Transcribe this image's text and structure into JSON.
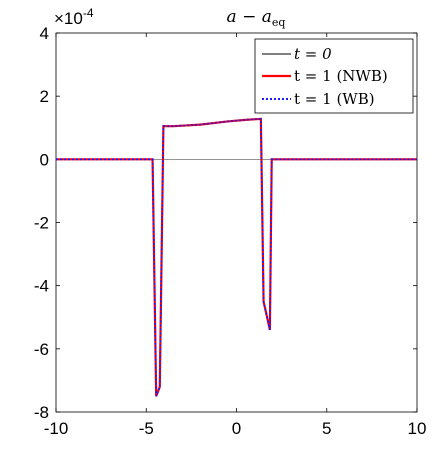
{
  "chart_data": {
    "type": "line",
    "title_main": "a − a",
    "title_sub": "eq",
    "y_multiplier_prefix": "×10",
    "y_multiplier_exp": "-4",
    "xlim": [
      -10,
      10
    ],
    "ylim": [
      -8,
      4
    ],
    "xticks": [
      -10,
      -5,
      0,
      5,
      10
    ],
    "yticks": [
      4,
      2,
      0,
      -2,
      -4,
      -6,
      -8
    ],
    "xtick_labels": [
      "-10",
      "-5",
      "0",
      "5",
      "10"
    ],
    "ytick_labels": [
      "4",
      "2",
      "0",
      "-2",
      "-4",
      "-6",
      "-8"
    ],
    "grid": false,
    "legend_position": "top-right",
    "reference_line_y": 0,
    "series": [
      {
        "name": "t = 0",
        "color": "#000000",
        "dash": "solid",
        "x": [
          -10,
          -4.6,
          -4.6,
          -10
        ],
        "y": [
          0,
          0,
          0,
          0
        ]
      },
      {
        "name": "t = 1 (NWB)",
        "color": "#ff0000",
        "dash": "solid",
        "x": [
          -10,
          -4.65,
          -4.45,
          -4.25,
          -4.05,
          -3.5,
          -2.0,
          -0.5,
          0.5,
          1.35,
          1.5,
          1.85,
          1.95,
          10
        ],
        "y": [
          0,
          0,
          -7.5,
          -7.2,
          1.05,
          1.05,
          1.1,
          1.2,
          1.25,
          1.28,
          -4.5,
          -5.4,
          0,
          0
        ]
      },
      {
        "name": "t = 1 (WB)",
        "color": "#1a1aff",
        "dash": "dotted",
        "x": [
          -10,
          -4.65,
          -4.45,
          -4.25,
          -4.05,
          -3.5,
          -2.0,
          -0.5,
          0.5,
          1.35,
          1.5,
          1.85,
          1.95,
          10
        ],
        "y": [
          0,
          0,
          -7.5,
          -7.2,
          1.05,
          1.05,
          1.1,
          1.2,
          1.25,
          1.28,
          -4.5,
          -5.4,
          0,
          0
        ]
      }
    ],
    "legend": [
      {
        "label": "t = 0",
        "color": "#000000",
        "dash": "solid"
      },
      {
        "label": "t = 1 (NWB)",
        "color": "#ff0000",
        "dash": "solid"
      },
      {
        "label": "t = 1 (WB)",
        "color": "#1a1aff",
        "dash": "dotted"
      }
    ]
  }
}
